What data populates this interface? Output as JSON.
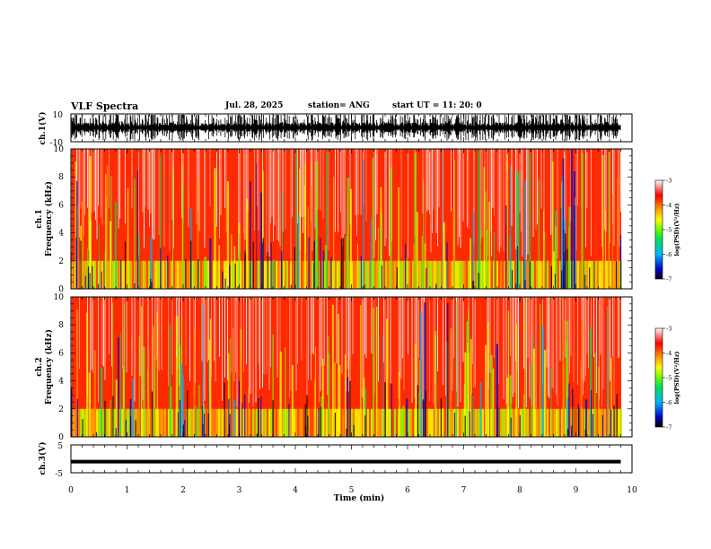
{
  "header": {
    "title": "VLF Spectra",
    "date": "Jul. 28, 2025",
    "station": "station= ANG",
    "start_ut": "start UT =  11: 20: 0"
  },
  "chart_data": [
    {
      "type": "line",
      "panel": "ch1-waveform",
      "ylabel": "ch.1(V)",
      "ylim": [
        -10,
        10
      ],
      "yticks": [
        "10",
        "-10"
      ],
      "xlim": [
        0,
        10
      ],
      "description_color": "#000000",
      "signal": "dense impulsive waveform saturating near ±10 V"
    },
    {
      "type": "heatmap",
      "panel": "ch1-spectrogram",
      "ylabel_top": "ch.1",
      "ylabel": "Frequency (kHz)",
      "ylim": [
        0,
        10
      ],
      "yticks": [
        "0",
        "2",
        "4",
        "6",
        "8",
        "10"
      ],
      "xlim": [
        0,
        10
      ],
      "data_end_min": 9.8,
      "colorbar": {
        "label": "log(PSD)(V²/Hz)",
        "range": [
          -7,
          -3
        ],
        "ticks": [
          "-3",
          "-4",
          "-5",
          "-6",
          "-7"
        ]
      }
    },
    {
      "type": "heatmap",
      "panel": "ch2-spectrogram",
      "ylabel_top": "ch.2",
      "ylabel": "Frequency (kHz)",
      "ylim": [
        0,
        10
      ],
      "yticks": [
        "0",
        "2",
        "4",
        "6",
        "8",
        "10"
      ],
      "xlim": [
        0,
        10
      ],
      "data_end_min": 9.8,
      "colorbar": {
        "label": "log(PSD)(V²/Hz)",
        "range": [
          -7,
          -3
        ],
        "ticks": [
          "-3",
          "-4",
          "-5",
          "-6",
          "-7"
        ]
      }
    },
    {
      "type": "line",
      "panel": "ch3-waveform",
      "ylabel": "ch.3(V)",
      "ylim": [
        -5,
        5
      ],
      "yticks": [
        "5",
        "-5"
      ],
      "xlim": [
        0,
        10
      ],
      "x": [
        0,
        9.8
      ],
      "y": [
        -1,
        -1
      ],
      "xlabel": "Time (min)",
      "xticks": [
        "0",
        "1",
        "2",
        "3",
        "4",
        "5",
        "6",
        "7",
        "8",
        "9",
        "10"
      ]
    }
  ],
  "colors": {
    "colormap": [
      "#000000",
      "#0000c8",
      "#00b4ff",
      "#00e05a",
      "#64ff00",
      "#ffff00",
      "#ff8c00",
      "#ff0000",
      "#ffffff"
    ]
  }
}
